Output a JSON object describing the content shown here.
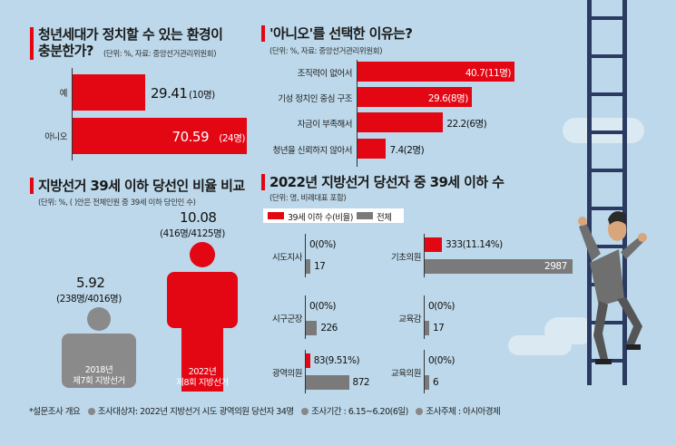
{
  "panel1": {
    "title_line1": "청년세대가 정치할 수 있는 환경이",
    "title_line2": "충분한가?",
    "subtitle": "(단위: %, 자료: 중앙선거관리위원회)"
  },
  "panel2": {
    "title": "'아니오'를 선택한 이유는?",
    "subtitle": "(단위: %, 자료: 중앙선거관리위원회)"
  },
  "panel3": {
    "title": "지방선거 39세 이하 당선인 비율 비교",
    "subtitle": "(단위: %, (   )안은 전체인원 중 39세 이하 당인인 수)"
  },
  "panel4": {
    "title": "2022년 지방선거 당선자 중 39세 이하 수",
    "subtitle": "(단위: 명, 비례대표 포함)"
  },
  "footer": {
    "survey": "*설문조사 개요",
    "target": "조사대상자: 2022년 지방선거 시도 광역의원 당선자 34명",
    "period": "조사기간 : 6.15~6.20(6일)",
    "host": "조사주체 : 아시아경제"
  },
  "colors": {
    "red": "#e30613",
    "gray": "#7a7a7a",
    "background": "#bcd8ea"
  },
  "chart_data": [
    {
      "type": "bar",
      "orientation": "horizontal",
      "categories": [
        "예",
        "아니오"
      ],
      "values": [
        29.41,
        70.59
      ],
      "value_labels": [
        "29.41",
        "70.59"
      ],
      "count_labels": [
        "(10명)",
        "(24명)"
      ]
    },
    {
      "type": "bar",
      "orientation": "horizontal",
      "categories": [
        "조직력이 없어서",
        "기성 정치인 중심 구조",
        "자금이 부족해서",
        "청년을 신뢰하지 않아서"
      ],
      "values": [
        40.7,
        29.6,
        22.2,
        7.4
      ],
      "value_labels": [
        "40.7",
        "29.6",
        "22.2",
        "7.4"
      ],
      "count_labels": [
        "(11명)",
        "(8명)",
        "(6명)",
        "(2명)"
      ]
    },
    {
      "type": "bar",
      "orientation": "vertical",
      "categories": [
        "2018년 제7회 지방선거",
        "2022년 제8회 지방선거"
      ],
      "category_line1": [
        "2018년",
        "2022년"
      ],
      "category_line2": [
        "제7회 지방선거",
        "제8회 지방선거"
      ],
      "values": [
        5.92,
        10.08
      ],
      "value_labels": [
        "5.92",
        "10.08"
      ],
      "count_labels": [
        "(238명/4016명)",
        "(416명/4125명)"
      ]
    },
    {
      "type": "bar",
      "orientation": "horizontal",
      "legend": [
        "39세 이하 수(비율)",
        "전체"
      ],
      "groups": [
        {
          "name": "시도지사",
          "under39": 0,
          "under39_label": "0(0%)",
          "total": 17,
          "total_label": "17"
        },
        {
          "name": "시구군장",
          "under39": 0,
          "under39_label": "0(0%)",
          "total": 226,
          "total_label": "226"
        },
        {
          "name": "광역의원",
          "under39": 83,
          "under39_label": "83(9.51%)",
          "total": 872,
          "total_label": "872"
        },
        {
          "name": "기초의원",
          "under39": 333,
          "under39_label": "333(11.14%)",
          "total": 2987,
          "total_label": "2987"
        },
        {
          "name": "교육감",
          "under39": 0,
          "under39_label": "0(0%)",
          "total": 17,
          "total_label": "17"
        },
        {
          "name": "교육의원",
          "under39": 0,
          "under39_label": "0(0%)",
          "total": 6,
          "total_label": "6"
        }
      ]
    }
  ]
}
